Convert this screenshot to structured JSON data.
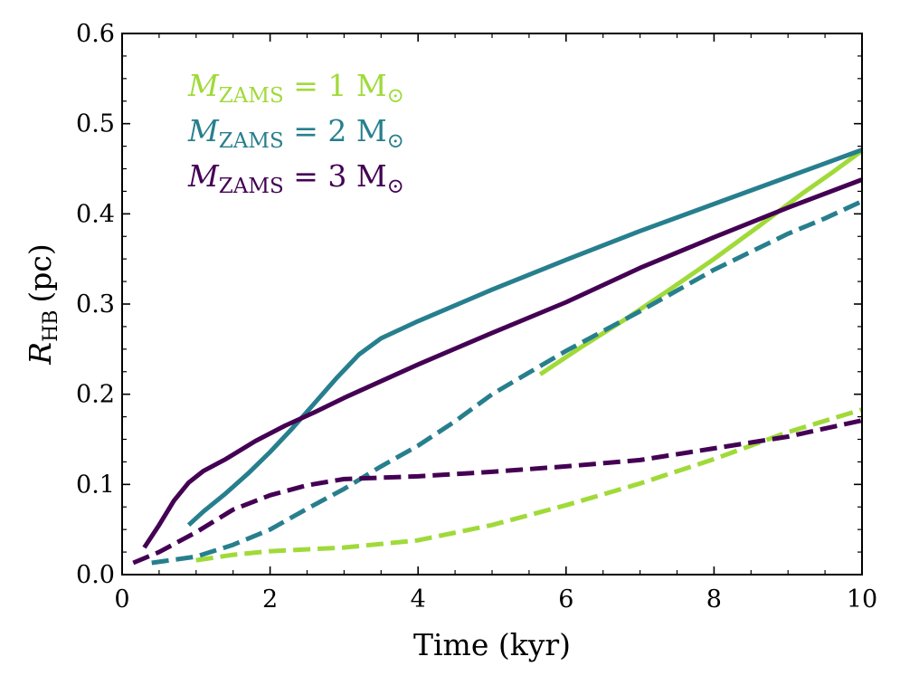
{
  "chart_data": {
    "type": "line",
    "title": "",
    "xlabel": "Time (kyr)",
    "ylabel_main": "R",
    "ylabel_sub": "HB",
    "ylabel_unit": "(pc)",
    "xlim": [
      0,
      10
    ],
    "ylim": [
      0,
      0.6
    ],
    "xticks": [
      0,
      2,
      4,
      6,
      8,
      10
    ],
    "xtick_labels": [
      "0",
      "2",
      "4",
      "6",
      "8",
      "10"
    ],
    "yticks": [
      0.0,
      0.1,
      0.2,
      0.3,
      0.4,
      0.5,
      0.6
    ],
    "ytick_labels": [
      "0.0",
      "0.1",
      "0.2",
      "0.3",
      "0.4",
      "0.5",
      "0.6"
    ],
    "grid": false,
    "legend_position": "top-left",
    "legend": [
      {
        "m": "M",
        "sub": "ZAMS",
        "eq": " = 1 M",
        "sun": "⊙",
        "color": "#a0da39"
      },
      {
        "m": "M",
        "sub": "ZAMS",
        "eq": " = 2 M",
        "sun": "⊙",
        "color": "#277f8e"
      },
      {
        "m": "M",
        "sub": "ZAMS",
        "eq": " = 3 M",
        "sun": "⊙",
        "color": "#440154"
      }
    ],
    "series": [
      {
        "name": "1 Msun solid",
        "color": "#a0da39",
        "dash": false,
        "x": [
          5.65,
          6.2,
          6.8,
          7.4,
          8.0,
          8.6,
          9.2,
          9.6,
          10.0
        ],
        "y": [
          0.222,
          0.252,
          0.283,
          0.316,
          0.35,
          0.386,
          0.423,
          0.446,
          0.47
        ]
      },
      {
        "name": "2 Msun solid",
        "color": "#277f8e",
        "dash": false,
        "x": [
          0.9,
          1.1,
          1.4,
          1.7,
          2.0,
          2.3,
          2.6,
          2.9,
          3.2,
          3.5,
          4.0,
          5.0,
          6.0,
          7.0,
          8.0,
          9.0,
          10.0
        ],
        "y": [
          0.055,
          0.07,
          0.09,
          0.112,
          0.136,
          0.162,
          0.19,
          0.218,
          0.244,
          0.262,
          0.281,
          0.316,
          0.349,
          0.381,
          0.411,
          0.441,
          0.471
        ]
      },
      {
        "name": "3 Msun solid",
        "color": "#440154",
        "dash": false,
        "x": [
          0.3,
          0.5,
          0.7,
          0.9,
          1.1,
          1.4,
          1.8,
          2.2,
          2.6,
          3.0,
          4.0,
          5.0,
          6.0,
          7.0,
          8.0,
          9.0,
          10.0
        ],
        "y": [
          0.03,
          0.055,
          0.082,
          0.102,
          0.115,
          0.128,
          0.148,
          0.165,
          0.18,
          0.196,
          0.233,
          0.268,
          0.302,
          0.34,
          0.374,
          0.407,
          0.438
        ]
      },
      {
        "name": "1 Msun dashed",
        "color": "#a0da39",
        "dash": true,
        "x": [
          1.0,
          1.5,
          2.0,
          3.0,
          4.0,
          5.0,
          6.0,
          7.0,
          8.0,
          9.0,
          10.0
        ],
        "y": [
          0.016,
          0.022,
          0.026,
          0.03,
          0.038,
          0.055,
          0.077,
          0.101,
          0.128,
          0.158,
          0.183
        ]
      },
      {
        "name": "2 Msun dashed",
        "color": "#277f8e",
        "dash": true,
        "x": [
          0.4,
          1.0,
          1.5,
          2.0,
          2.5,
          3.0,
          3.5,
          4.0,
          4.5,
          5.0,
          5.5,
          6.0,
          6.5,
          7.0,
          7.5,
          8.0,
          8.5,
          9.0,
          9.5,
          10.0
        ],
        "y": [
          0.013,
          0.02,
          0.033,
          0.05,
          0.073,
          0.095,
          0.12,
          0.143,
          0.17,
          0.2,
          0.224,
          0.248,
          0.27,
          0.292,
          0.315,
          0.338,
          0.358,
          0.378,
          0.395,
          0.414
        ]
      },
      {
        "name": "3 Msun dashed",
        "color": "#440154",
        "dash": true,
        "x": [
          0.15,
          0.5,
          1.0,
          1.5,
          2.0,
          2.5,
          3.0,
          4.0,
          5.0,
          6.0,
          7.0,
          8.0,
          9.0,
          10.0
        ],
        "y": [
          0.013,
          0.025,
          0.047,
          0.072,
          0.088,
          0.099,
          0.106,
          0.109,
          0.114,
          0.12,
          0.127,
          0.14,
          0.153,
          0.171
        ]
      }
    ]
  }
}
